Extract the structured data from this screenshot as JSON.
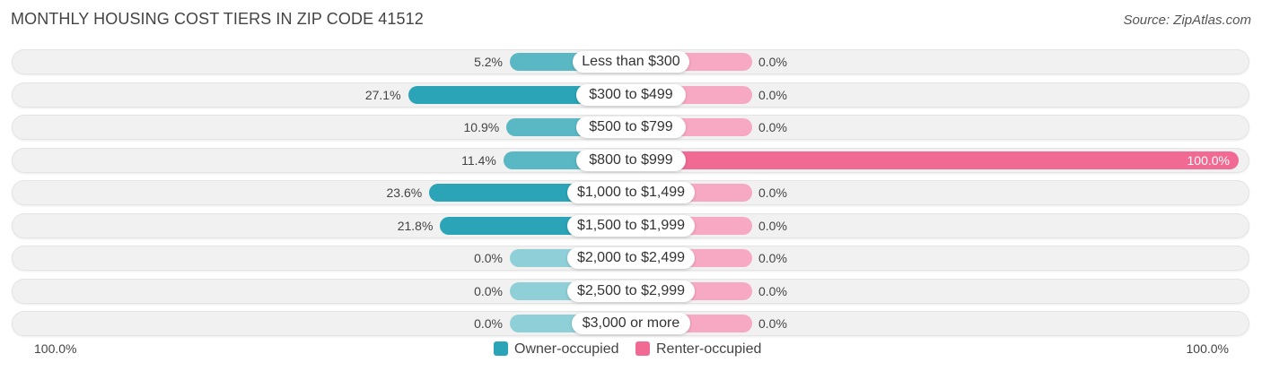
{
  "header": {
    "title": "MONTHLY HOUSING COST TIERS IN ZIP CODE 41512",
    "source": "Source: ZipAtlas.com"
  },
  "chart_data": {
    "type": "bar",
    "orientation": "horizontal-diverging",
    "categories": [
      "Less than $300",
      "$300 to $499",
      "$500 to $799",
      "$800 to $999",
      "$1,000 to $1,499",
      "$1,500 to $1,999",
      "$2,000 to $2,499",
      "$2,500 to $2,999",
      "$3,000 or more"
    ],
    "series": [
      {
        "name": "Owner-occupied",
        "color": "#2aa4b6",
        "values": [
          5.2,
          27.1,
          10.9,
          11.4,
          23.6,
          21.8,
          0.0,
          0.0,
          0.0
        ],
        "labels": [
          "5.2%",
          "27.1%",
          "10.9%",
          "11.4%",
          "23.6%",
          "21.8%",
          "0.0%",
          "0.0%",
          "0.0%"
        ]
      },
      {
        "name": "Renter-occupied",
        "color": "#f06a93",
        "values": [
          0.0,
          0.0,
          0.0,
          100.0,
          0.0,
          0.0,
          0.0,
          0.0,
          0.0
        ],
        "labels": [
          "0.0%",
          "0.0%",
          "0.0%",
          "100.0%",
          "0.0%",
          "0.0%",
          "0.0%",
          "0.0%",
          "0.0%"
        ]
      }
    ],
    "axis": {
      "left_label": "100.0%",
      "right_label": "100.0%",
      "max": 100
    },
    "legend_position": "bottom-center"
  }
}
